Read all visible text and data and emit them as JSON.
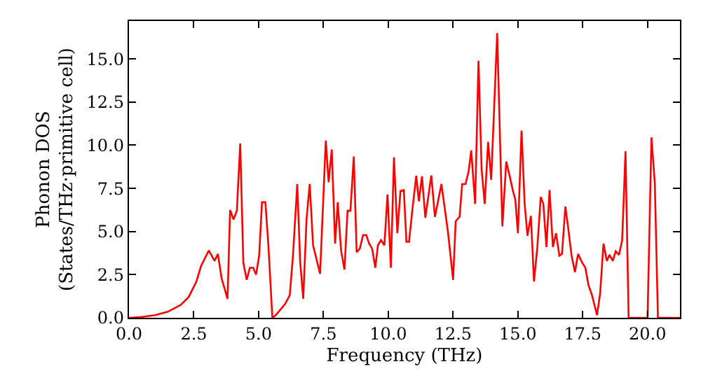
{
  "chart_data": {
    "type": "line",
    "xlabel": "Frequency (THz)",
    "ylabel": "Phonon DOS\n(States/THz·primitive cell)",
    "xlim": [
      0,
      21.25
    ],
    "ylim": [
      0,
      17.2
    ],
    "xticks": [
      {
        "value": 0,
        "label": "0.0"
      },
      {
        "value": 2.5,
        "label": "2.5"
      },
      {
        "value": 5,
        "label": "5.0"
      },
      {
        "value": 7.5,
        "label": "7.5"
      },
      {
        "value": 10,
        "label": "10.0"
      },
      {
        "value": 12.5,
        "label": "12.5"
      },
      {
        "value": 15,
        "label": "15.0"
      },
      {
        "value": 17.5,
        "label": "17.5"
      },
      {
        "value": 20,
        "label": "20.0"
      }
    ],
    "yticks": [
      {
        "value": 0,
        "label": "0.0"
      },
      {
        "value": 2.5,
        "label": "2.5"
      },
      {
        "value": 5,
        "label": "5.0"
      },
      {
        "value": 7.5,
        "label": "7.5"
      },
      {
        "value": 10,
        "label": "10.0"
      },
      {
        "value": 12.5,
        "label": "12.5"
      },
      {
        "value": 15,
        "label": "15.0"
      }
    ],
    "series": [
      {
        "color": "#ff0000",
        "x": [
          0,
          0.5,
          1.0,
          1.5,
          2.0,
          2.3,
          2.6,
          2.78,
          3.08,
          3.3,
          3.43,
          3.57,
          3.8,
          3.9,
          4.03,
          4.16,
          4.29,
          4.41,
          4.54,
          4.66,
          4.79,
          4.9,
          5.02,
          5.13,
          5.26,
          5.38,
          5.53,
          5.66,
          6.02,
          6.2,
          6.32,
          6.49,
          6.6,
          6.72,
          6.85,
          6.97,
          7.1,
          7.37,
          7.59,
          7.7,
          7.82,
          7.95,
          8.05,
          8.18,
          8.31,
          8.43,
          8.54,
          8.67,
          8.78,
          8.9,
          9.03,
          9.15,
          9.26,
          9.38,
          9.5,
          9.6,
          9.72,
          9.85,
          9.97,
          10.1,
          10.22,
          10.35,
          10.47,
          10.6,
          10.7,
          10.8,
          10.95,
          11.08,
          11.18,
          11.3,
          11.43,
          11.66,
          11.8,
          12.05,
          12.3,
          12.5,
          12.6,
          12.75,
          12.85,
          12.98,
          13.1,
          13.2,
          13.35,
          13.48,
          13.6,
          13.72,
          13.85,
          13.97,
          14.2,
          14.4,
          14.55,
          14.67,
          14.8,
          14.9,
          15.0,
          15.14,
          15.26,
          15.37,
          15.5,
          15.62,
          15.75,
          15.88,
          15.98,
          16.1,
          16.22,
          16.35,
          16.47,
          16.6,
          16.7,
          16.83,
          16.94,
          17.07,
          17.2,
          17.32,
          17.46,
          17.6,
          17.72,
          17.86,
          18.05,
          18.17,
          18.3,
          18.43,
          18.53,
          18.66,
          18.77,
          18.9,
          19.02,
          19.15,
          19.27,
          20.0,
          20.15,
          20.28,
          20.4,
          21.25
        ],
        "values": [
          0,
          0.05,
          0.15,
          0.35,
          0.75,
          1.2,
          2.1,
          3.0,
          3.9,
          3.3,
          3.7,
          2.3,
          1.1,
          6.25,
          5.7,
          6.2,
          10.1,
          3.2,
          2.2,
          2.9,
          2.9,
          2.5,
          3.6,
          6.7,
          6.7,
          4.1,
          0,
          0.15,
          0.8,
          1.3,
          3.5,
          7.75,
          3.3,
          1.1,
          5.75,
          7.75,
          4.2,
          2.55,
          10.27,
          7.85,
          9.75,
          4.3,
          6.7,
          3.9,
          2.8,
          6.2,
          6.2,
          9.35,
          3.8,
          4.0,
          4.8,
          4.8,
          4.3,
          4.0,
          2.9,
          4.2,
          4.5,
          4.2,
          7.15,
          2.9,
          9.3,
          4.9,
          7.35,
          7.4,
          4.4,
          4.4,
          6.55,
          8.23,
          6.75,
          8.2,
          5.8,
          8.25,
          5.85,
          7.75,
          5.0,
          2.2,
          5.6,
          5.85,
          7.75,
          7.75,
          8.5,
          9.7,
          6.6,
          14.9,
          8.6,
          6.6,
          10.2,
          8.0,
          16.5,
          5.3,
          9.05,
          8.3,
          7.4,
          6.85,
          4.9,
          10.85,
          6.6,
          4.75,
          5.9,
          2.1,
          4.1,
          7.0,
          6.6,
          4.1,
          7.4,
          4.1,
          4.9,
          3.6,
          3.7,
          6.45,
          5.2,
          3.6,
          2.65,
          3.7,
          3.25,
          2.9,
          1.9,
          1.3,
          0.15,
          1.4,
          4.3,
          3.3,
          3.65,
          3.3,
          3.85,
          3.65,
          4.5,
          9.65,
          0,
          0,
          10.45,
          7.8,
          0,
          0
        ]
      }
    ]
  }
}
